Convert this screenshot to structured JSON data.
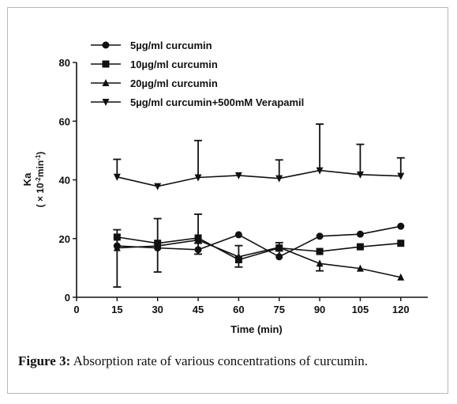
{
  "caption": {
    "label": "Figure 3:",
    "text": "Absorption rate of various concentrations of curcumin."
  },
  "chart_data": {
    "type": "line",
    "title": "",
    "xlabel": "Time (min)",
    "ylabel": "Ka",
    "ylabel_unit_prefix": "( × 10",
    "ylabel_unit_exp1": "-2",
    "ylabel_unit_mid": "min",
    "ylabel_unit_exp2": "-1",
    "ylabel_unit_suffix": ")",
    "xlim": [
      0,
      130
    ],
    "ylim": [
      0,
      80
    ],
    "x_ticks": [
      0,
      15,
      30,
      45,
      60,
      75,
      90,
      105,
      120
    ],
    "y_ticks": [
      0,
      20,
      40,
      60,
      80
    ],
    "grid": false,
    "legend_position": "top-left",
    "x": [
      15,
      30,
      45,
      60,
      75,
      90,
      105,
      120
    ],
    "series": [
      {
        "name": "5µg/ml curcumin",
        "marker": "circle",
        "values": [
          17.5,
          16.8,
          16.2,
          21.3,
          13.8,
          20.8,
          21.5,
          24.2
        ],
        "err_up": [
          5.5,
          0,
          2.2,
          0,
          2.0,
          0,
          0,
          0
        ],
        "err_down": [
          0,
          0,
          1.5,
          0,
          0,
          0,
          0,
          0
        ]
      },
      {
        "name": "10µg/ml curcumin",
        "marker": "square",
        "values": [
          20.5,
          18.4,
          20.2,
          12.8,
          16.8,
          15.6,
          17.2,
          18.4
        ],
        "err_up": [
          0,
          8.4,
          0,
          0,
          0,
          0,
          0,
          0
        ],
        "err_down": [
          17.0,
          0,
          0,
          0,
          0,
          0,
          0,
          0
        ]
      },
      {
        "name": "20µg/ml curcumin",
        "marker": "triangle-up",
        "values": [
          16.8,
          17.5,
          19.5,
          13.8,
          17.0,
          11.5,
          9.8,
          6.8
        ],
        "err_up": [
          0,
          0,
          8.8,
          3.8,
          1.6,
          0,
          0,
          0
        ],
        "err_down": [
          0,
          8.9,
          0,
          3.5,
          0,
          2.5,
          0,
          0
        ]
      },
      {
        "name": "5µg/ml curcumin+500mM Verapamil",
        "marker": "triangle-down",
        "values": [
          41.0,
          37.8,
          40.8,
          41.5,
          40.5,
          43.2,
          41.8,
          41.3
        ],
        "err_up": [
          6.0,
          0,
          12.6,
          0,
          6.3,
          15.8,
          10.3,
          6.2
        ],
        "err_down": [
          0,
          0,
          0,
          0,
          0,
          0,
          0,
          0
        ]
      }
    ]
  }
}
